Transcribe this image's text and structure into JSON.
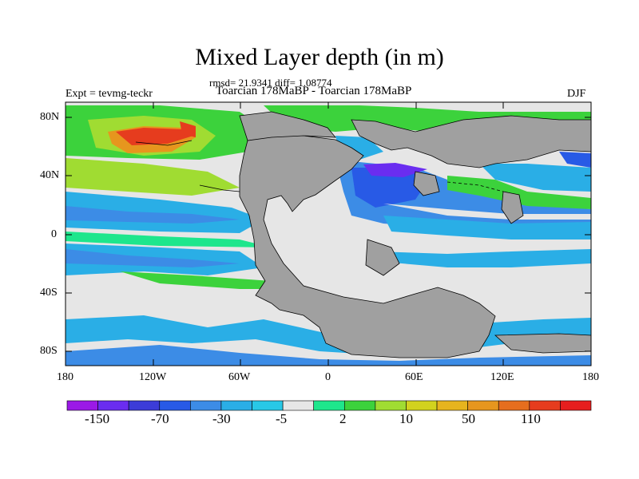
{
  "map": {
    "title": "Mixed Layer depth (in m)",
    "stats": "rmsd= 21.9341 diff= 1.08774",
    "experiment": "Expt = tevmg-teckr",
    "comparison": "Toarcian 178MaBP - Toarcian 178MaBP",
    "season": "DJF",
    "lat_ticks": [
      "80N",
      "40N",
      "0",
      "40S",
      "80S"
    ],
    "lon_ticks": [
      "180",
      "120W",
      "60W",
      "0",
      "60E",
      "120E",
      "180"
    ]
  },
  "legend": {
    "labels": [
      "-150",
      "-70",
      "-30",
      "-5",
      "2",
      "10",
      "50",
      "110"
    ],
    "colors": [
      "#9b19e6",
      "#6a2df0",
      "#3c3cd8",
      "#285ae6",
      "#3c8ce6",
      "#2aaee6",
      "#28c8e6",
      "#e6e6e6",
      "#1ee68c",
      "#3cd23c",
      "#a0dc32",
      "#d2d21e",
      "#e6b41e",
      "#e6961e",
      "#e66e1e",
      "#e63c1e",
      "#e61e1e"
    ]
  },
  "colors": {
    "land": "#a0a0a0",
    "zero_band": "#e6e6e6"
  }
}
